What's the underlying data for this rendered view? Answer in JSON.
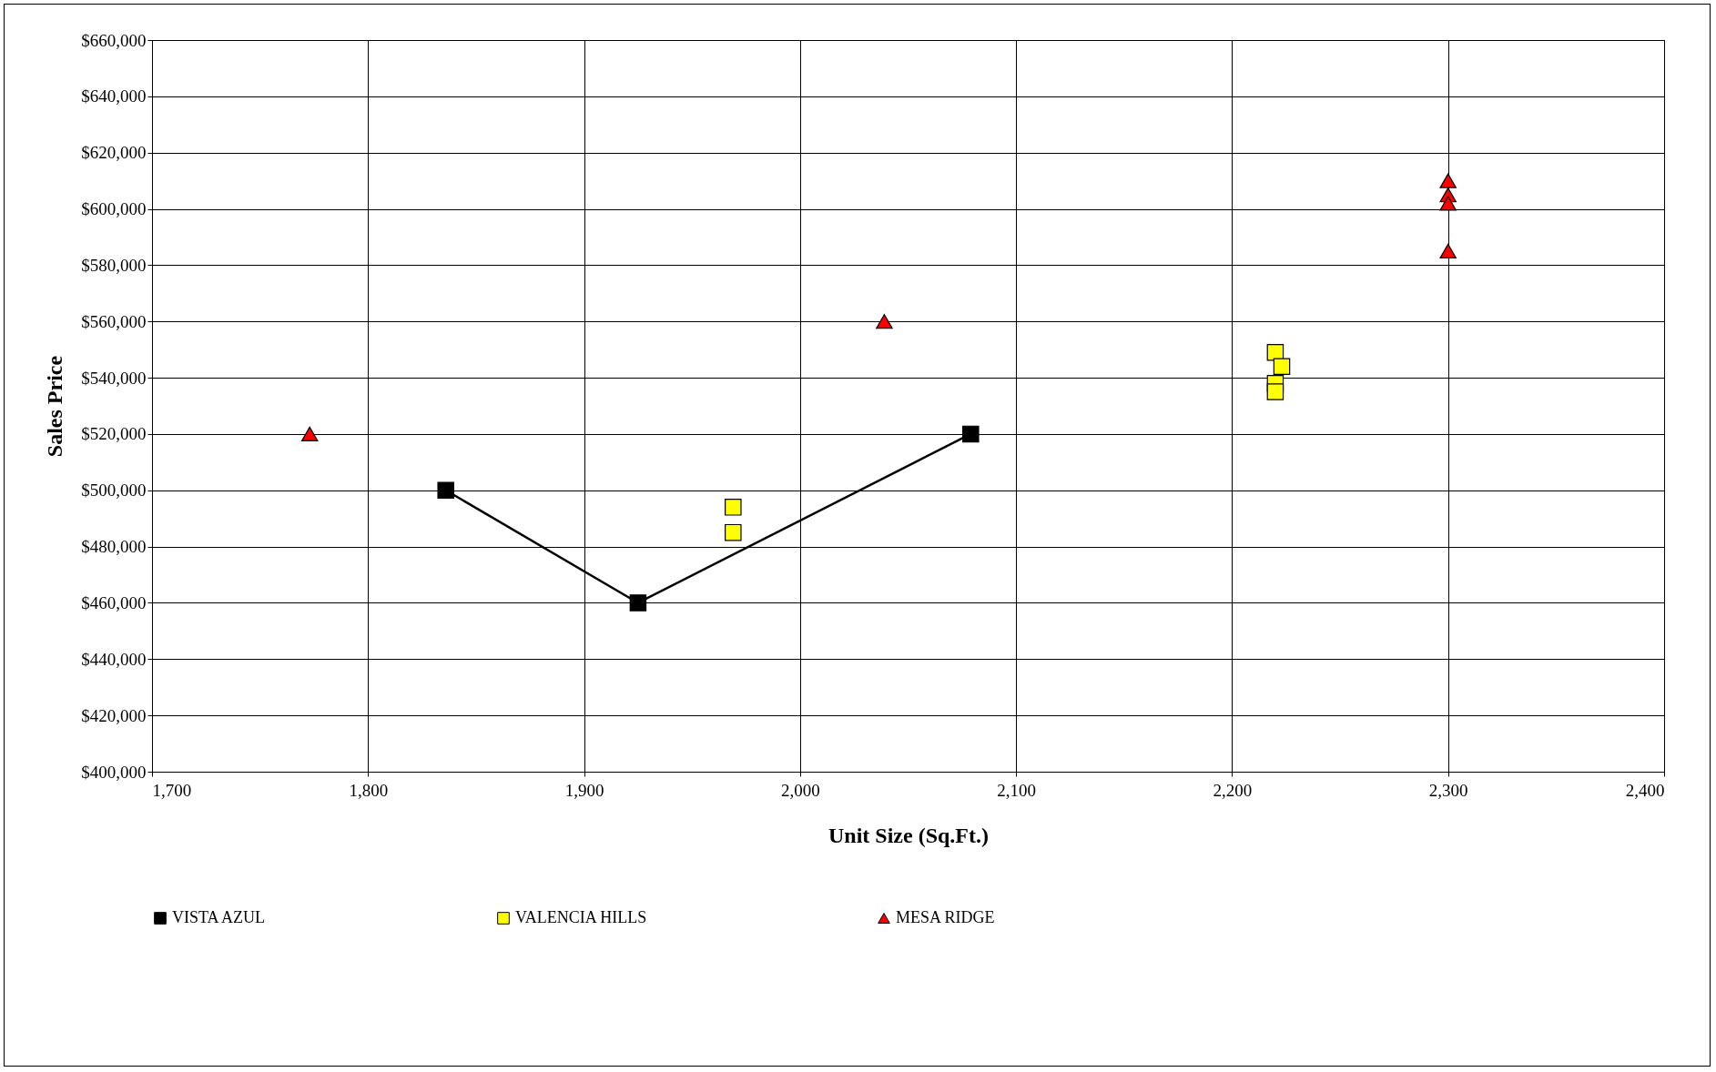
{
  "chart_data": {
    "type": "scatter",
    "xlabel": "Unit Size (Sq.Ft.)",
    "ylabel": "Sales Price",
    "series": [
      {
        "name": "VISTA AZUL",
        "type": "line",
        "color": "#000000",
        "marker": "square",
        "x": [
          1836,
          1925,
          2079
        ],
        "values": [
          500000,
          460000,
          520000
        ]
      },
      {
        "name": "VALENCIA HILLS",
        "type": "scatter",
        "color": "#ffff00",
        "marker": "square",
        "x": [
          1969,
          1969,
          2220,
          2223,
          2220,
          2220
        ],
        "values": [
          494000,
          485000,
          549000,
          544000,
          538000,
          535000
        ]
      },
      {
        "name": "MESA RIDGE",
        "type": "scatter",
        "color": "#ff0000",
        "marker": "triangle",
        "x": [
          1773,
          2039,
          2300,
          2300,
          2300,
          2300
        ],
        "values": [
          520000,
          560000,
          610000,
          605000,
          602000,
          585000
        ]
      }
    ],
    "xlim": [
      1700,
      2400
    ],
    "xticks": [
      {
        "value": 1700,
        "label": "1,700"
      },
      {
        "value": 1800,
        "label": "1,800"
      },
      {
        "value": 1900,
        "label": "1,900"
      },
      {
        "value": 2000,
        "label": "2,000"
      },
      {
        "value": 2100,
        "label": "2,100"
      },
      {
        "value": 2200,
        "label": "2,200"
      },
      {
        "value": 2300,
        "label": "2,300"
      },
      {
        "value": 2400,
        "label": "2,400"
      }
    ],
    "ylim": [
      400000,
      660000
    ],
    "yticks": [
      {
        "value": 400000,
        "label": "$400,000"
      },
      {
        "value": 420000,
        "label": "$420,000"
      },
      {
        "value": 440000,
        "label": "$440,000"
      },
      {
        "value": 460000,
        "label": "$460,000"
      },
      {
        "value": 480000,
        "label": "$480,000"
      },
      {
        "value": 500000,
        "label": "$500,000"
      },
      {
        "value": 520000,
        "label": "$520,000"
      },
      {
        "value": 540000,
        "label": "$540,000"
      },
      {
        "value": 560000,
        "label": "$560,000"
      },
      {
        "value": 580000,
        "label": "$580,000"
      },
      {
        "value": 600000,
        "label": "$600,000"
      },
      {
        "value": 620000,
        "label": "$620,000"
      },
      {
        "value": 640000,
        "label": "$640,000"
      },
      {
        "value": 660000,
        "label": "$660,000"
      }
    ],
    "grid": true,
    "legend": "bottom"
  }
}
